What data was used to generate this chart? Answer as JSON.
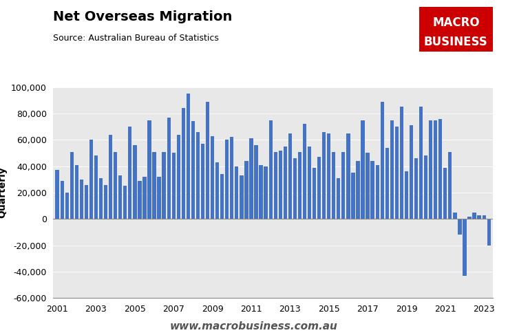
{
  "title": "Net Overseas Migration",
  "subtitle": "Source: Australian Bureau of Statistics",
  "ylabel": "Quarterly",
  "bar_color": "#4472C4",
  "background_color": "#E8E8E8",
  "ylim": [
    -60000,
    100000
  ],
  "yticks": [
    -60000,
    -40000,
    -20000,
    0,
    20000,
    40000,
    60000,
    80000,
    100000
  ],
  "watermark": "www.macrobusiness.com.au",
  "logo_text1": "MACRO",
  "logo_text2": "BUSINESS",
  "logo_bg": "#CC0000",
  "values": [
    37000,
    29000,
    20000,
    51000,
    41000,
    30000,
    26000,
    60000,
    48000,
    31000,
    26000,
    64000,
    51000,
    33000,
    25000,
    70000,
    56000,
    29000,
    32000,
    75000,
    51000,
    32000,
    51000,
    77000,
    50000,
    64000,
    84000,
    95000,
    74000,
    66000,
    57000,
    89000,
    63000,
    43000,
    34000,
    60000,
    62000,
    40000,
    33000,
    44000,
    61000,
    56000,
    41000,
    40000,
    75000,
    51000,
    52000,
    55000,
    65000,
    46000,
    51000,
    72000,
    55000,
    39000,
    47000,
    66000,
    65000,
    51000,
    31000,
    51000,
    65000,
    35000,
    44000,
    75000,
    50000,
    44000,
    41000,
    89000,
    54000,
    75000,
    70000,
    85000,
    36000,
    71000,
    46000,
    85000,
    48000,
    75000,
    75000,
    76000,
    39000,
    51000,
    5000,
    -12000,
    -43000,
    2000,
    5000,
    3000,
    3000,
    -20000
  ],
  "start_year": 2001,
  "quarters_per_year": 4,
  "xtick_every_n_years": 2
}
